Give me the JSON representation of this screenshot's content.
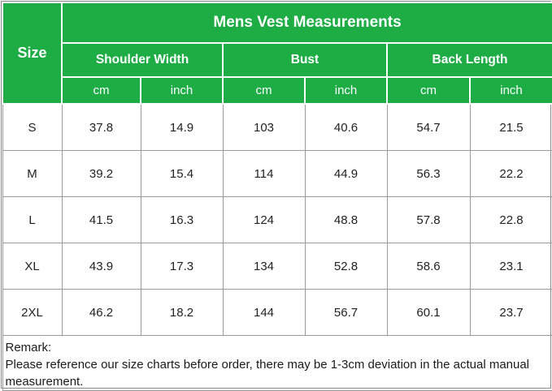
{
  "table": {
    "title": "Mens Vest Measurements",
    "size_header": "Size",
    "groups": [
      "Shoulder Width",
      "Bust",
      "Back Length"
    ],
    "units": [
      "cm",
      "inch",
      "cm",
      "inch",
      "cm",
      "inch"
    ],
    "rows": [
      [
        "S",
        "37.8",
        "14.9",
        "103",
        "40.6",
        "54.7",
        "21.5"
      ],
      [
        "M",
        "39.2",
        "15.4",
        "114",
        "44.9",
        "56.3",
        "22.2"
      ],
      [
        "L",
        "41.5",
        "16.3",
        "124",
        "48.8",
        "57.8",
        "22.8"
      ],
      [
        "XL",
        "43.9",
        "17.3",
        "134",
        "52.8",
        "58.6",
        "23.1"
      ],
      [
        "2XL",
        "46.2",
        "18.2",
        "144",
        "56.7",
        "60.1",
        "23.7"
      ]
    ],
    "remark_title": "Remark:",
    "remark_text": "Please reference our size charts before order, there may be 1-3cm deviation in the actual manual measurement."
  },
  "colors": {
    "header_green": "#1ead45",
    "header_text": "#ffffff",
    "grid": "#9a9a9a"
  }
}
